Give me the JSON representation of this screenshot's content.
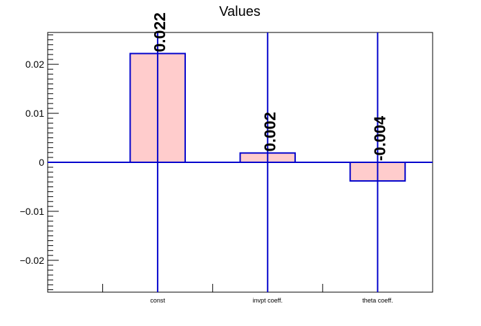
{
  "chart_data": {
    "type": "bar",
    "title": "Values",
    "xlabel": "",
    "ylabel": "",
    "categories": [
      "const",
      "invpt coeff.",
      "theta coeff."
    ],
    "values": [
      0.0222,
      0.0019,
      -0.0038
    ],
    "value_labels": [
      "0.022",
      "0.002",
      "-0.004"
    ],
    "ylim": [
      -0.0265,
      0.0265
    ],
    "y_ticks": [
      -0.02,
      -0.01,
      0,
      0.01,
      0.02
    ],
    "y_tick_labels": [
      "−0.02",
      "−0.01",
      "0",
      "0.01",
      "0.02"
    ],
    "grid": false,
    "legend": "none",
    "colors": {
      "bar_fill": "#ffcccc",
      "bar_edge": "#0000cc",
      "axis": "#000000",
      "zero_line": "#0000cc",
      "error_bar": "#0000cc"
    }
  }
}
